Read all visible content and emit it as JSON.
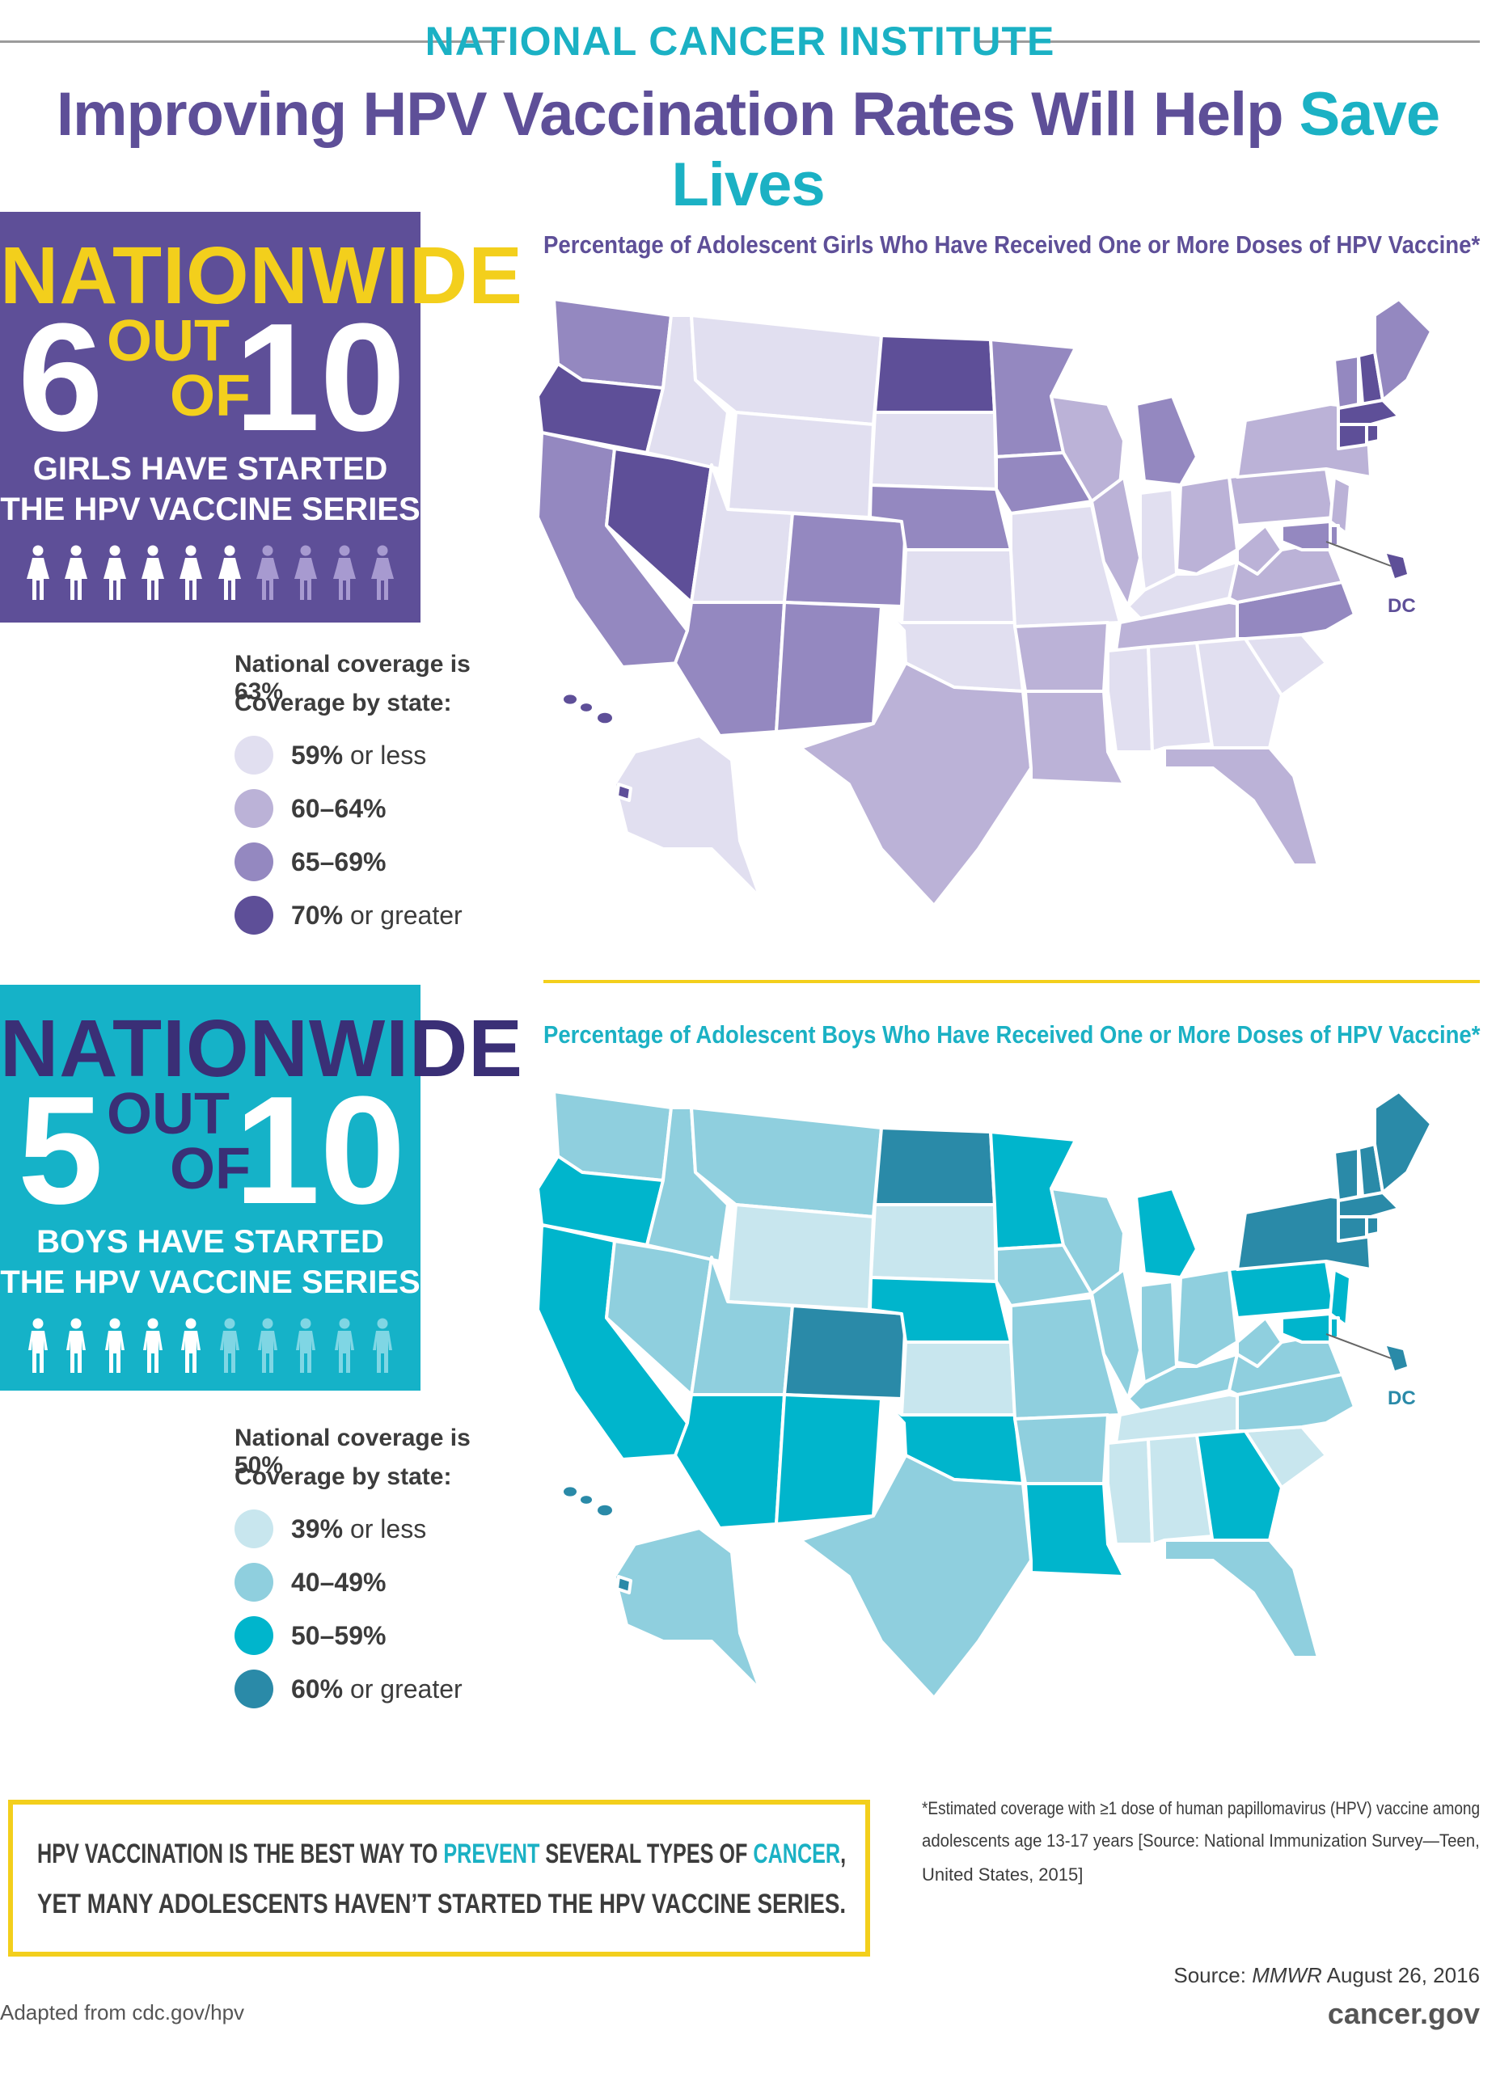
{
  "header": {
    "org": "NATIONAL CANCER INSTITUTE",
    "title_main": "Improving HPV Vaccination Rates Will Help ",
    "title_accent": "Save Lives"
  },
  "girls": {
    "nationwide": "NATIONWIDE",
    "num": "6",
    "out": "OUT",
    "of": "OF",
    "den": "10",
    "sub1": "GIRLS HAVE STARTED",
    "sub2": "THE HPV VACCINE SERIES",
    "filled": 6,
    "total": 10,
    "map_title": "Percentage of Adolescent Girls Who Have Received One or More Doses of HPV Vaccine*",
    "national": "National coverage is 63%",
    "by_state": "Coverage by state:",
    "legend": [
      {
        "bold": "59%",
        "rest": " or less",
        "color": "#e1dff0"
      },
      {
        "bold": "60–64%",
        "rest": "",
        "color": "#bbb2d7"
      },
      {
        "bold": "65–69%",
        "rest": "",
        "color": "#9488c0"
      },
      {
        "bold": "70%",
        "rest": " or greater",
        "color": "#5e4f98"
      }
    ],
    "dc": "DC"
  },
  "boys": {
    "nationwide": "NATIONWIDE",
    "num": "5",
    "out": "OUT",
    "of": "OF",
    "den": "10",
    "sub1": "BOYS HAVE STARTED",
    "sub2": "THE HPV VACCINE SERIES",
    "filled": 5,
    "total": 10,
    "map_title": "Percentage of Adolescent Boys Who Have Received One or More Doses of HPV Vaccine*",
    "national": "National coverage is 50%",
    "by_state": "Coverage by state:",
    "legend": [
      {
        "bold": "39%",
        "rest": " or less",
        "color": "#c8e6ee"
      },
      {
        "bold": "40–49%",
        "rest": "",
        "color": "#8fcfde"
      },
      {
        "bold": "50–59%",
        "rest": "",
        "color": "#00b5cc"
      },
      {
        "bold": "60%",
        "rest": " or greater",
        "color": "#2a8aa8"
      }
    ],
    "dc": "DC"
  },
  "message": {
    "l1a": "HPV VACCINATION IS THE BEST WAY TO ",
    "l1b": "PREVENT",
    "l1c": " SEVERAL TYPES OF ",
    "l1d": "CANCER",
    "l1e": ",",
    "l2": "YET MANY ADOLESCENTS HAVEN’T STARTED THE HPV VACCINE SERIES."
  },
  "footnote": {
    "l1": "*Estimated coverage with ≥1 dose of human papillomavirus (HPV) vaccine among",
    "l2": "adolescents age 13-17 years [Source: National Immunization Survey—Teen,",
    "l3": "United States, 2015]"
  },
  "source": {
    "prefix": "Source: ",
    "journal": "MMWR",
    "date": " August 26, 2016"
  },
  "site": "cancer.gov",
  "adapted": "Adapted from cdc.gov/hpv"
}
